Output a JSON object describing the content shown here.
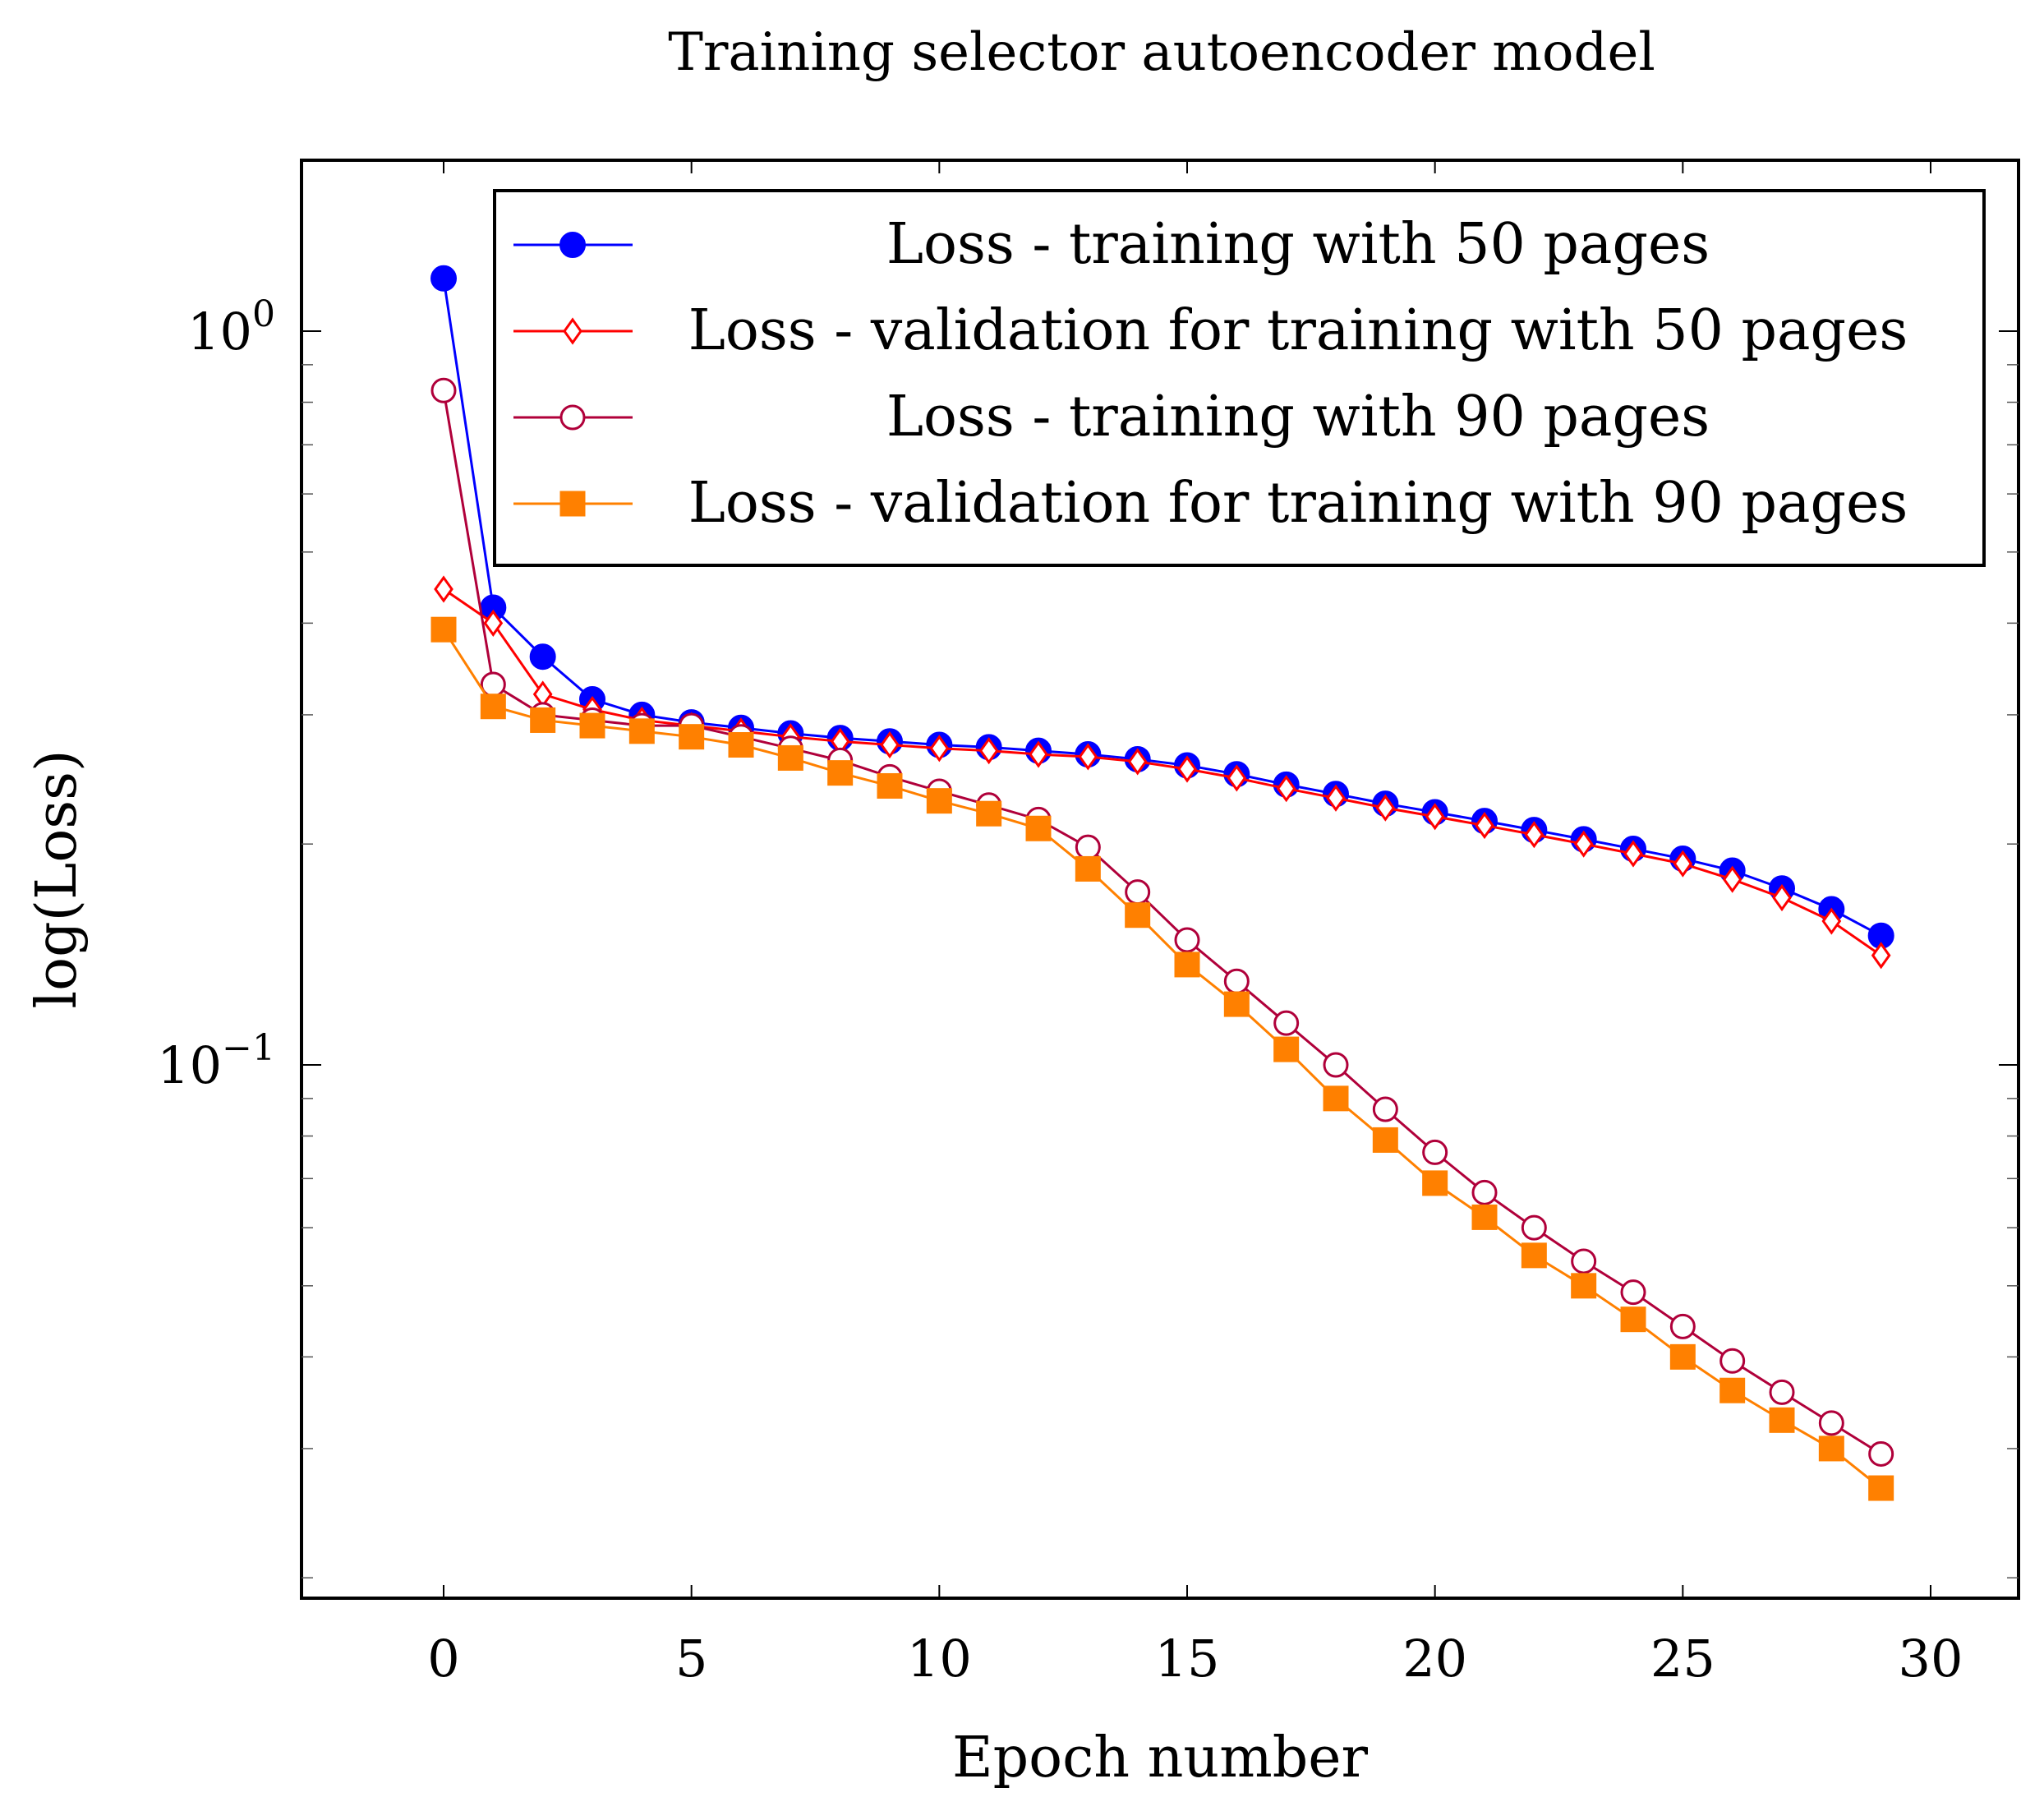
{
  "chart_data": {
    "type": "line",
    "title": "Training selector autoencoder model",
    "xlabel": "Epoch number",
    "ylabel": "log(Loss)",
    "yscale": "log",
    "xlim": [
      -3,
      31
    ],
    "ylim": [
      0.02,
      1.65
    ],
    "xticks": [
      0,
      5,
      10,
      15,
      20,
      25,
      30
    ],
    "xtick_labels": [
      "0",
      "5",
      "10",
      "15",
      "20",
      "25",
      "30"
    ],
    "yticks": [
      {
        "value": 1.0,
        "base": "10",
        "exp": "0"
      },
      {
        "value": 0.1,
        "base": "10",
        "exp": "−1"
      }
    ],
    "legend_position": "top-right",
    "x": [
      0,
      1,
      2,
      3,
      4,
      5,
      6,
      7,
      8,
      9,
      10,
      11,
      12,
      13,
      14,
      15,
      16,
      17,
      18,
      19,
      20,
      21,
      22,
      23,
      24,
      25,
      26,
      27,
      28,
      29
    ],
    "series": [
      {
        "name": "Loss - training with 50 pages",
        "color": "#0000ff",
        "marker": "filled-circle",
        "values": [
          1.18,
          0.42,
          0.36,
          0.315,
          0.3,
          0.293,
          0.288,
          0.283,
          0.279,
          0.276,
          0.273,
          0.271,
          0.268,
          0.265,
          0.261,
          0.256,
          0.249,
          0.241,
          0.234,
          0.227,
          0.221,
          0.215,
          0.209,
          0.203,
          0.197,
          0.191,
          0.184,
          0.174,
          0.163,
          0.15
        ]
      },
      {
        "name": "Loss - validation for training with 50 pages",
        "color": "#ff0000",
        "marker": "open-diamond",
        "values": [
          0.445,
          0.4,
          0.32,
          0.305,
          0.295,
          0.29,
          0.285,
          0.28,
          0.276,
          0.273,
          0.27,
          0.268,
          0.265,
          0.263,
          0.259,
          0.253,
          0.246,
          0.238,
          0.231,
          0.224,
          0.218,
          0.212,
          0.206,
          0.2,
          0.194,
          0.188,
          0.179,
          0.169,
          0.157,
          0.141
        ]
      },
      {
        "name": "Loss - training with 90 pages",
        "color": "#b0003a",
        "marker": "open-circle",
        "values": [
          0.83,
          0.33,
          0.3,
          0.295,
          0.29,
          0.29,
          0.28,
          0.27,
          0.26,
          0.247,
          0.236,
          0.226,
          0.216,
          0.198,
          0.172,
          0.148,
          0.13,
          0.114,
          0.1,
          0.087,
          0.076,
          0.067,
          0.06,
          0.054,
          0.049,
          0.044,
          0.0395,
          0.0358,
          0.0325,
          0.0295
        ]
      },
      {
        "name": "Loss - validation for training with 90 pages",
        "color": "#ff8000",
        "marker": "filled-square",
        "values": [
          0.392,
          0.308,
          0.295,
          0.29,
          0.285,
          0.28,
          0.273,
          0.262,
          0.25,
          0.24,
          0.229,
          0.22,
          0.21,
          0.185,
          0.16,
          0.137,
          0.121,
          0.105,
          0.09,
          0.079,
          0.069,
          0.062,
          0.055,
          0.05,
          0.045,
          0.04,
          0.036,
          0.0328,
          0.03,
          0.0265
        ]
      }
    ]
  }
}
